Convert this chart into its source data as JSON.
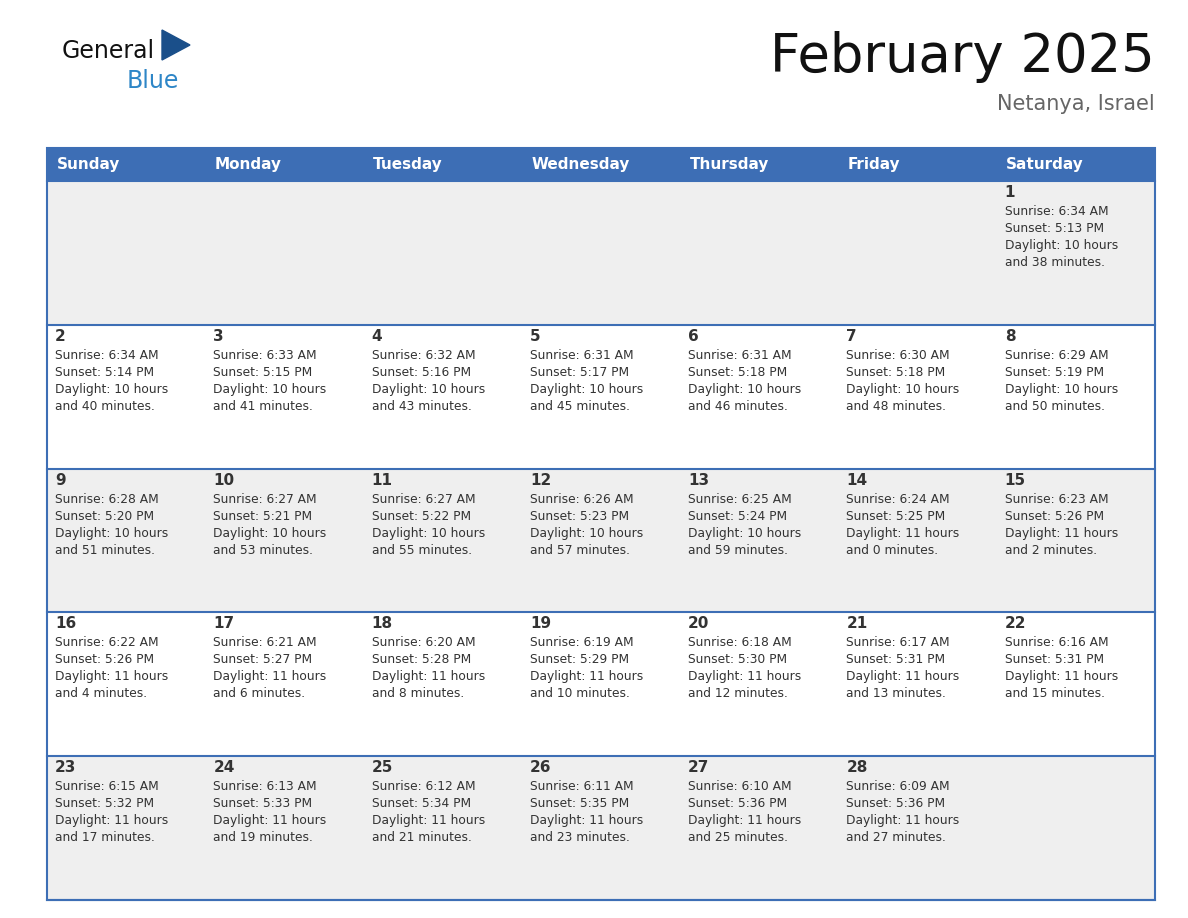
{
  "title": "February 2025",
  "subtitle": "Netanya, Israel",
  "days_of_week": [
    "Sunday",
    "Monday",
    "Tuesday",
    "Wednesday",
    "Thursday",
    "Friday",
    "Saturday"
  ],
  "header_bg": "#3d6eb5",
  "header_text_color": "#FFFFFF",
  "cell_bg_week1": "#EFEFEF",
  "cell_bg_week2": "#FFFFFF",
  "cell_bg_week3": "#EFEFEF",
  "cell_bg_week4": "#FFFFFF",
  "cell_bg_week5": "#EFEFEF",
  "border_color": "#3d6eb5",
  "text_color": "#333333",
  "day_number_color": "#333333",
  "title_color": "#111111",
  "subtitle_color": "#666666",
  "logo_general_color": "#111111",
  "logo_dark_blue": "#1a4f8a",
  "logo_light_blue": "#2e86c7",
  "weeks": [
    [
      {
        "date": null,
        "sunrise": null,
        "sunset": null,
        "daylight": null
      },
      {
        "date": null,
        "sunrise": null,
        "sunset": null,
        "daylight": null
      },
      {
        "date": null,
        "sunrise": null,
        "sunset": null,
        "daylight": null
      },
      {
        "date": null,
        "sunrise": null,
        "sunset": null,
        "daylight": null
      },
      {
        "date": null,
        "sunrise": null,
        "sunset": null,
        "daylight": null
      },
      {
        "date": null,
        "sunrise": null,
        "sunset": null,
        "daylight": null
      },
      {
        "date": "1",
        "sunrise": "6:34 AM",
        "sunset": "5:13 PM",
        "daylight": "10 hours and 38 minutes."
      }
    ],
    [
      {
        "date": "2",
        "sunrise": "6:34 AM",
        "sunset": "5:14 PM",
        "daylight": "10 hours and 40 minutes."
      },
      {
        "date": "3",
        "sunrise": "6:33 AM",
        "sunset": "5:15 PM",
        "daylight": "10 hours and 41 minutes."
      },
      {
        "date": "4",
        "sunrise": "6:32 AM",
        "sunset": "5:16 PM",
        "daylight": "10 hours and 43 minutes."
      },
      {
        "date": "5",
        "sunrise": "6:31 AM",
        "sunset": "5:17 PM",
        "daylight": "10 hours and 45 minutes."
      },
      {
        "date": "6",
        "sunrise": "6:31 AM",
        "sunset": "5:18 PM",
        "daylight": "10 hours and 46 minutes."
      },
      {
        "date": "7",
        "sunrise": "6:30 AM",
        "sunset": "5:18 PM",
        "daylight": "10 hours and 48 minutes."
      },
      {
        "date": "8",
        "sunrise": "6:29 AM",
        "sunset": "5:19 PM",
        "daylight": "10 hours and 50 minutes."
      }
    ],
    [
      {
        "date": "9",
        "sunrise": "6:28 AM",
        "sunset": "5:20 PM",
        "daylight": "10 hours and 51 minutes."
      },
      {
        "date": "10",
        "sunrise": "6:27 AM",
        "sunset": "5:21 PM",
        "daylight": "10 hours and 53 minutes."
      },
      {
        "date": "11",
        "sunrise": "6:27 AM",
        "sunset": "5:22 PM",
        "daylight": "10 hours and 55 minutes."
      },
      {
        "date": "12",
        "sunrise": "6:26 AM",
        "sunset": "5:23 PM",
        "daylight": "10 hours and 57 minutes."
      },
      {
        "date": "13",
        "sunrise": "6:25 AM",
        "sunset": "5:24 PM",
        "daylight": "10 hours and 59 minutes."
      },
      {
        "date": "14",
        "sunrise": "6:24 AM",
        "sunset": "5:25 PM",
        "daylight": "11 hours and 0 minutes."
      },
      {
        "date": "15",
        "sunrise": "6:23 AM",
        "sunset": "5:26 PM",
        "daylight": "11 hours and 2 minutes."
      }
    ],
    [
      {
        "date": "16",
        "sunrise": "6:22 AM",
        "sunset": "5:26 PM",
        "daylight": "11 hours and 4 minutes."
      },
      {
        "date": "17",
        "sunrise": "6:21 AM",
        "sunset": "5:27 PM",
        "daylight": "11 hours and 6 minutes."
      },
      {
        "date": "18",
        "sunrise": "6:20 AM",
        "sunset": "5:28 PM",
        "daylight": "11 hours and 8 minutes."
      },
      {
        "date": "19",
        "sunrise": "6:19 AM",
        "sunset": "5:29 PM",
        "daylight": "11 hours and 10 minutes."
      },
      {
        "date": "20",
        "sunrise": "6:18 AM",
        "sunset": "5:30 PM",
        "daylight": "11 hours and 12 minutes."
      },
      {
        "date": "21",
        "sunrise": "6:17 AM",
        "sunset": "5:31 PM",
        "daylight": "11 hours and 13 minutes."
      },
      {
        "date": "22",
        "sunrise": "6:16 AM",
        "sunset": "5:31 PM",
        "daylight": "11 hours and 15 minutes."
      }
    ],
    [
      {
        "date": "23",
        "sunrise": "6:15 AM",
        "sunset": "5:32 PM",
        "daylight": "11 hours and 17 minutes."
      },
      {
        "date": "24",
        "sunrise": "6:13 AM",
        "sunset": "5:33 PM",
        "daylight": "11 hours and 19 minutes."
      },
      {
        "date": "25",
        "sunrise": "6:12 AM",
        "sunset": "5:34 PM",
        "daylight": "11 hours and 21 minutes."
      },
      {
        "date": "26",
        "sunrise": "6:11 AM",
        "sunset": "5:35 PM",
        "daylight": "11 hours and 23 minutes."
      },
      {
        "date": "27",
        "sunrise": "6:10 AM",
        "sunset": "5:36 PM",
        "daylight": "11 hours and 25 minutes."
      },
      {
        "date": "28",
        "sunrise": "6:09 AM",
        "sunset": "5:36 PM",
        "daylight": "11 hours and 27 minutes."
      },
      {
        "date": null,
        "sunrise": null,
        "sunset": null,
        "daylight": null
      }
    ]
  ],
  "cell_bgs": [
    "#EFEFEF",
    "#FFFFFF",
    "#EFEFEF",
    "#FFFFFF",
    "#EFEFEF"
  ]
}
